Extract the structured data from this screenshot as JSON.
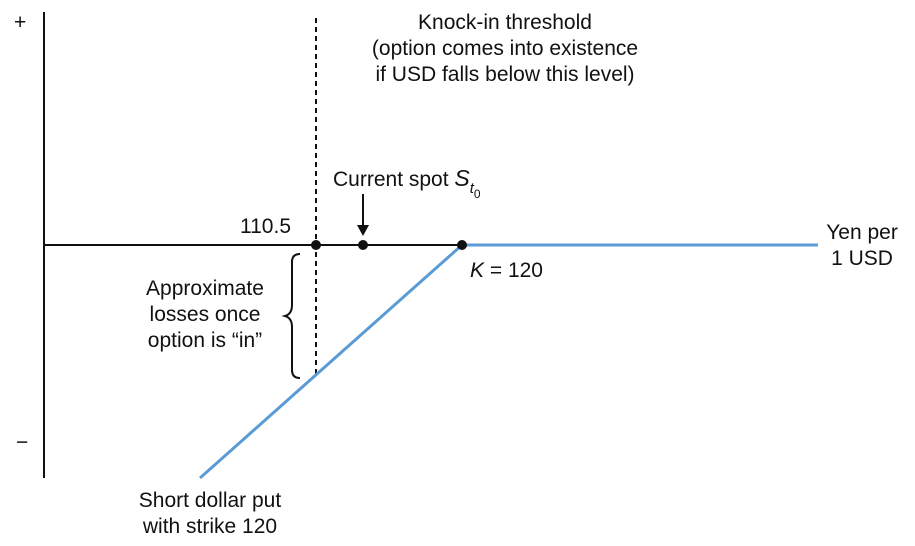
{
  "axis": {
    "plus_sign": "+",
    "minus_sign": "−",
    "x_label_line1": "Yen per",
    "x_label_line2": "1 USD"
  },
  "threshold": {
    "value_label": "110.5",
    "title_line1": "Knock-in threshold",
    "title_line2": "(option comes into existence",
    "title_line3": "if USD falls below this level)"
  },
  "spot": {
    "label": "Current spot ",
    "symbol": "S",
    "subscript": "t",
    "sub_subscript": "0"
  },
  "strike": {
    "symbol": "K",
    "text": " = 120"
  },
  "losses": {
    "line1": "Approximate",
    "line2": "losses once",
    "line3": "option is “in”"
  },
  "payoff": {
    "line1": "Short dollar put",
    "line2": "with strike 120"
  },
  "colors": {
    "payoff_line": "#5b9bd5",
    "axis": "#111111"
  }
}
